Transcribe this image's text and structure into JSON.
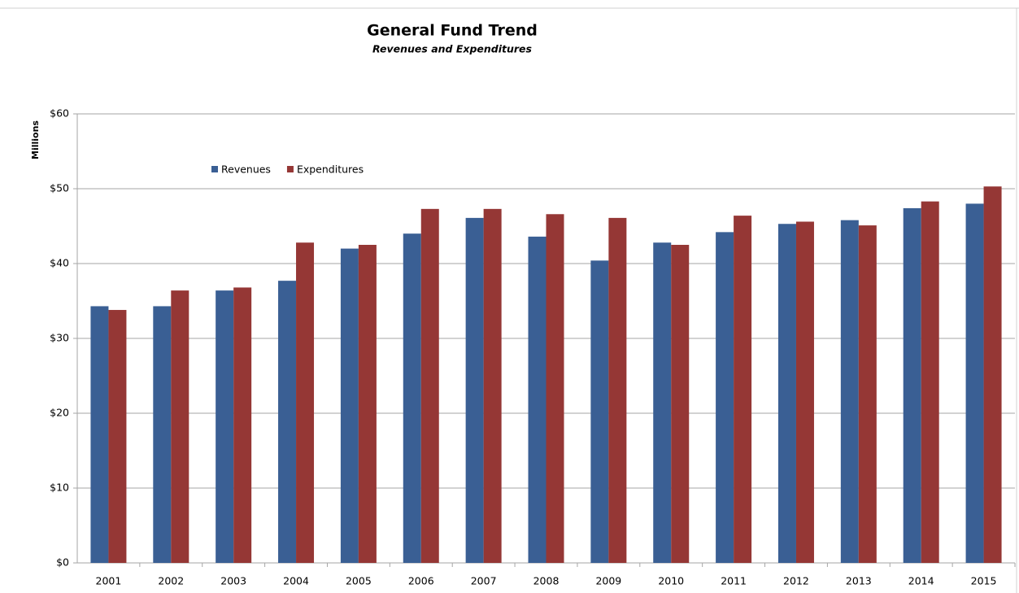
{
  "chart_data": {
    "type": "bar",
    "title": "General Fund Trend",
    "subtitle": "Revenues  and Expenditures",
    "y_label": "Millions",
    "categories": [
      "2001",
      "2002",
      "2003",
      "2004",
      "2005",
      "2006",
      "2007",
      "2008",
      "2009",
      "2010",
      "2011",
      "2012",
      "2013",
      "2014",
      "2015"
    ],
    "series": [
      {
        "name": "Revenues",
        "color": "#3a5f94",
        "values": [
          34.3,
          34.3,
          36.4,
          37.7,
          42.0,
          44.0,
          46.1,
          43.6,
          40.4,
          42.8,
          44.2,
          45.3,
          45.8,
          47.4,
          48.0
        ]
      },
      {
        "name": "Expenditures",
        "color": "#953735",
        "values": [
          33.8,
          36.4,
          36.8,
          42.8,
          42.5,
          47.3,
          47.3,
          46.6,
          46.1,
          42.5,
          46.4,
          45.6,
          45.1,
          48.3,
          50.3
        ]
      }
    ],
    "ylim": [
      0,
      60
    ],
    "yticks": [
      {
        "value": 0,
        "label": "$0"
      },
      {
        "value": 10,
        "label": "$10"
      },
      {
        "value": 20,
        "label": "$20"
      },
      {
        "value": 30,
        "label": "$30"
      },
      {
        "value": 40,
        "label": "$40"
      },
      {
        "value": 50,
        "label": "$50"
      },
      {
        "value": 60,
        "label": "$60"
      }
    ],
    "grid": true,
    "legend": "upper left"
  }
}
